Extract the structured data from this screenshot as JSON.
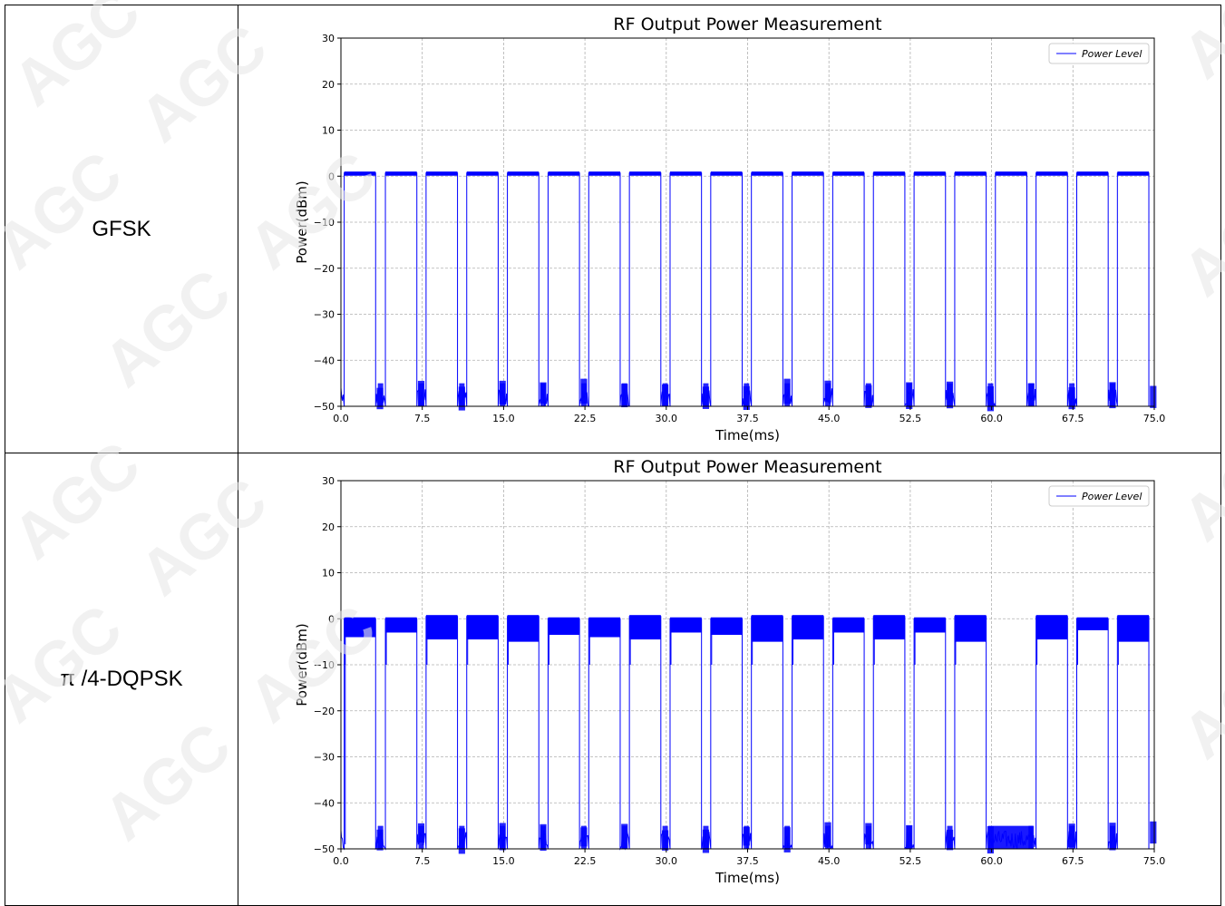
{
  "rows": [
    {
      "label": "GFSK"
    },
    {
      "label": "π /4-DQPSK"
    }
  ],
  "watermark": "AGC",
  "chart_data": [
    {
      "type": "line",
      "title": "RF Output Power Measurement",
      "xlabel": "Time(ms)",
      "ylabel": "Power(dBm)",
      "xlim": [
        0,
        75
      ],
      "ylim": [
        -50,
        30
      ],
      "xticks": [
        0.0,
        7.5,
        15.0,
        22.5,
        30.0,
        37.5,
        45.0,
        52.5,
        60.0,
        67.5,
        75.0
      ],
      "xtick_labels": [
        "0.0",
        "7.5",
        "15.0",
        "22.5",
        "30.0",
        "37.5",
        "45.0",
        "52.5",
        "60.0",
        "67.5",
        "75.0"
      ],
      "yticks": [
        30,
        20,
        10,
        0,
        -10,
        -20,
        -30,
        -40,
        -50
      ],
      "ytick_labels": [
        "30",
        "20",
        "10",
        "0",
        "−10",
        "−20",
        "−30",
        "−40",
        "−50"
      ],
      "grid": true,
      "legend_position": "top-right",
      "series": [
        {
          "name": "Power Level",
          "color": "#0000ff",
          "bursts": [
            {
              "start": 0.3,
              "end": 3.2,
              "level": 0.7
            },
            {
              "start": 4.1,
              "end": 7.0,
              "level": 0.7
            },
            {
              "start": 7.85,
              "end": 10.75,
              "level": 0.7
            },
            {
              "start": 11.6,
              "end": 14.5,
              "level": 0.7
            },
            {
              "start": 15.35,
              "end": 18.25,
              "level": 0.7
            },
            {
              "start": 19.1,
              "end": 22.0,
              "level": 0.7
            },
            {
              "start": 22.85,
              "end": 25.75,
              "level": 0.7
            },
            {
              "start": 26.6,
              "end": 29.5,
              "level": 0.7
            },
            {
              "start": 30.35,
              "end": 33.25,
              "level": 0.7
            },
            {
              "start": 34.1,
              "end": 37.0,
              "level": 0.7
            },
            {
              "start": 37.85,
              "end": 40.75,
              "level": 0.7
            },
            {
              "start": 41.6,
              "end": 44.5,
              "level": 0.7
            },
            {
              "start": 45.35,
              "end": 48.25,
              "level": 0.7
            },
            {
              "start": 49.1,
              "end": 52.0,
              "level": 0.7
            },
            {
              "start": 52.85,
              "end": 55.75,
              "level": 0.7
            },
            {
              "start": 56.6,
              "end": 59.5,
              "level": 0.7
            },
            {
              "start": 60.35,
              "end": 63.25,
              "level": 0.7
            },
            {
              "start": 64.1,
              "end": 67.0,
              "level": 0.7
            },
            {
              "start": 67.85,
              "end": 70.75,
              "level": 0.7
            },
            {
              "start": 71.6,
              "end": 74.5,
              "level": 0.7
            }
          ],
          "off_level": -50
        }
      ]
    },
    {
      "type": "line",
      "title": "RF Output Power Measurement",
      "xlabel": "Time(ms)",
      "ylabel": "Power(dBm)",
      "xlim": [
        0,
        75
      ],
      "ylim": [
        -50,
        30
      ],
      "xticks": [
        0.0,
        7.5,
        15.0,
        22.5,
        30.0,
        37.5,
        45.0,
        52.5,
        60.0,
        67.5,
        75.0
      ],
      "xtick_labels": [
        "0.0",
        "7.5",
        "15.0",
        "22.5",
        "30.0",
        "37.5",
        "45.0",
        "52.5",
        "60.0",
        "67.5",
        "75.0"
      ],
      "yticks": [
        30,
        20,
        10,
        0,
        -10,
        -20,
        -30,
        -40,
        -50
      ],
      "ytick_labels": [
        "30",
        "20",
        "10",
        "0",
        "−10",
        "−20",
        "−30",
        "−40",
        "−50"
      ],
      "grid": true,
      "legend_position": "top-right",
      "series": [
        {
          "name": "Power Level",
          "color": "#0000ff",
          "bursts": [
            {
              "start": 0.3,
              "end": 3.2,
              "level_high": 0,
              "level_low": -4
            },
            {
              "start": 4.1,
              "end": 7.0,
              "level_high": 0,
              "level_low": -3
            },
            {
              "start": 7.85,
              "end": 10.75,
              "level_high": 0.5,
              "level_low": -4.5
            },
            {
              "start": 11.6,
              "end": 14.5,
              "level_high": 0.5,
              "level_low": -4.5
            },
            {
              "start": 15.35,
              "end": 18.25,
              "level_high": 0.5,
              "level_low": -5
            },
            {
              "start": 19.1,
              "end": 22.0,
              "level_high": 0,
              "level_low": -3.5
            },
            {
              "start": 22.85,
              "end": 25.75,
              "level_high": 0,
              "level_low": -4
            },
            {
              "start": 26.6,
              "end": 29.5,
              "level_high": 0.5,
              "level_low": -4.5
            },
            {
              "start": 30.35,
              "end": 33.25,
              "level_high": 0,
              "level_low": -3
            },
            {
              "start": 34.1,
              "end": 37.0,
              "level_high": 0,
              "level_low": -3.5
            },
            {
              "start": 37.85,
              "end": 40.75,
              "level_high": 0.5,
              "level_low": -5
            },
            {
              "start": 41.6,
              "end": 44.5,
              "level_high": 0.5,
              "level_low": -4.5
            },
            {
              "start": 45.35,
              "end": 48.25,
              "level_high": 0,
              "level_low": -3
            },
            {
              "start": 49.1,
              "end": 52.0,
              "level_high": 0.5,
              "level_low": -4.5
            },
            {
              "start": 52.85,
              "end": 55.75,
              "level_high": 0,
              "level_low": -3
            },
            {
              "start": 56.6,
              "end": 59.5,
              "level_high": 0.5,
              "level_low": -5
            },
            {
              "start": 64.1,
              "end": 67.0,
              "level_high": 0.5,
              "level_low": -4.5
            },
            {
              "start": 67.85,
              "end": 70.75,
              "level_high": 0,
              "level_low": -2.5
            },
            {
              "start": 71.6,
              "end": 74.5,
              "level_high": 0.5,
              "level_low": -5
            }
          ],
          "off_level": -50
        }
      ]
    }
  ]
}
